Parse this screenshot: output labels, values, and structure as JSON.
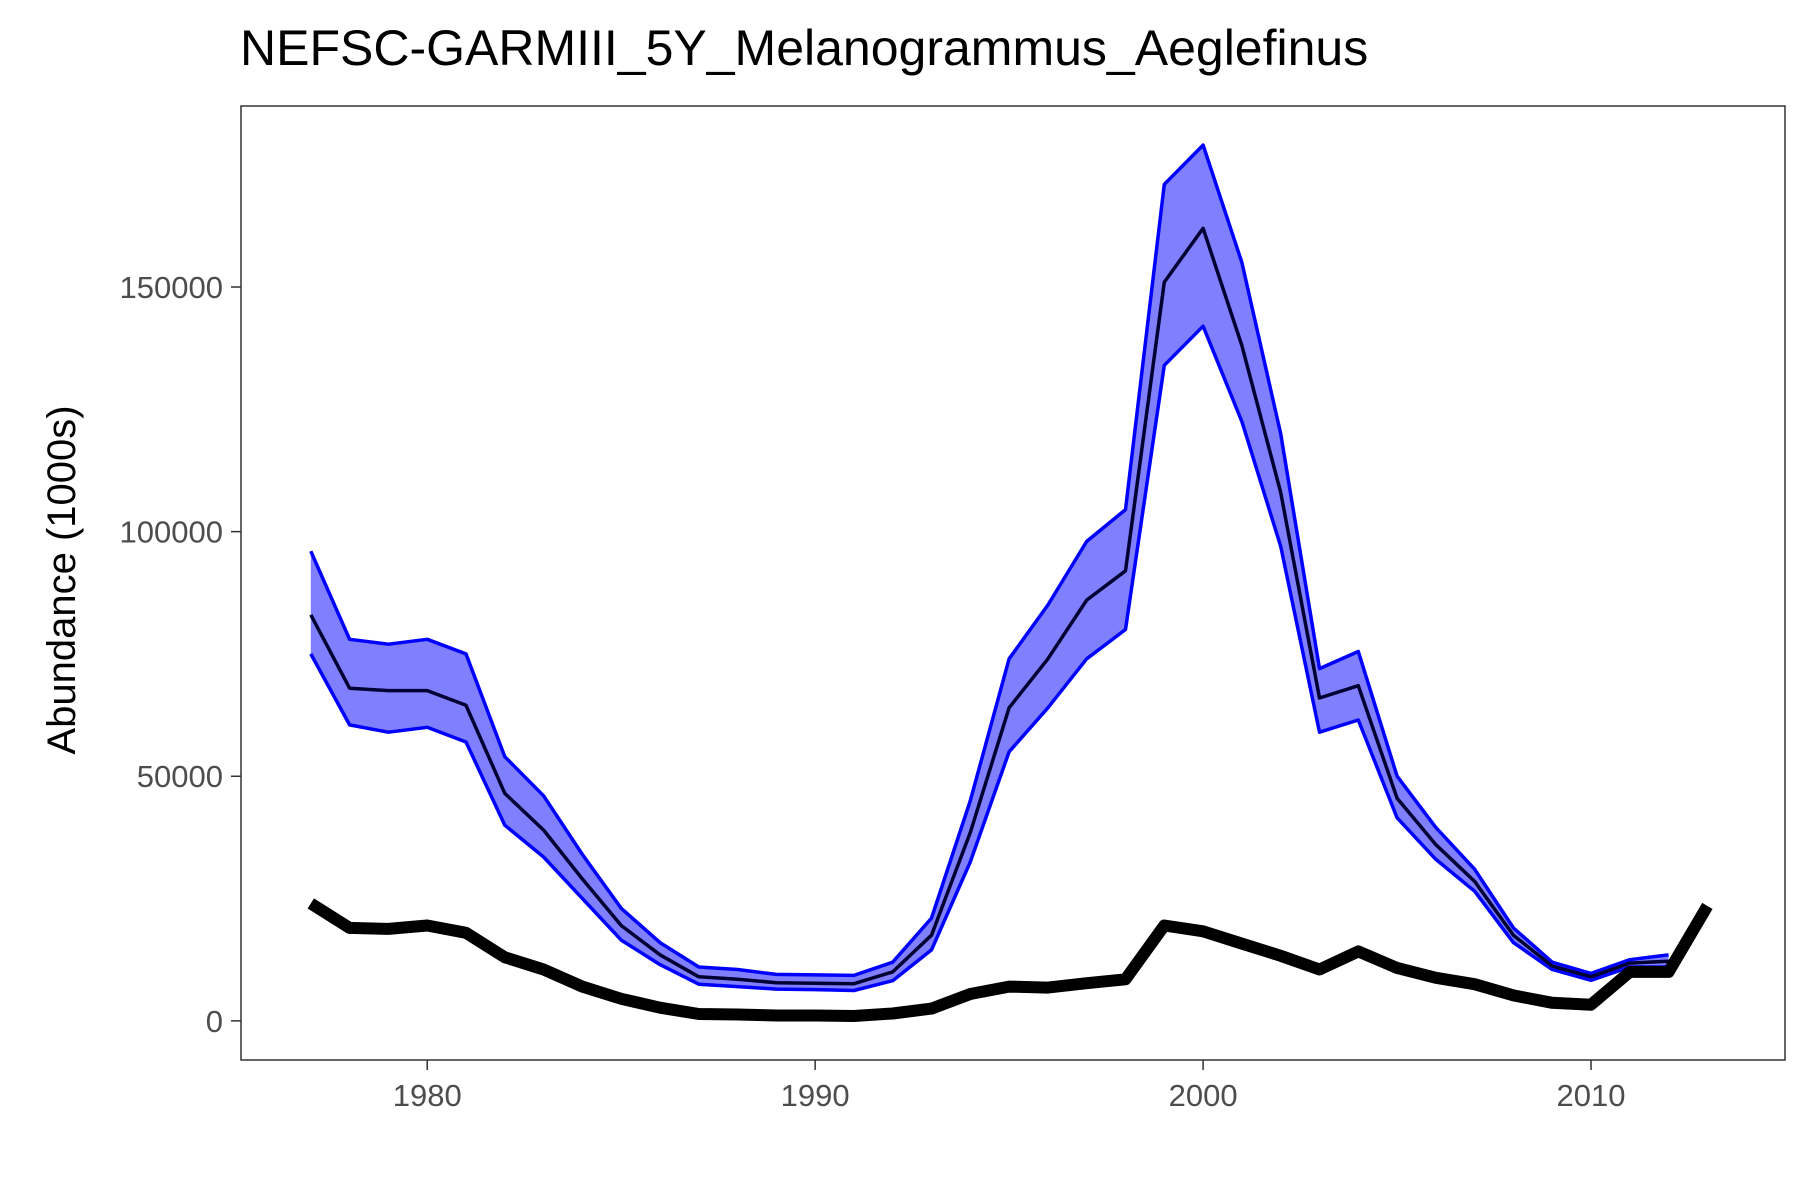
{
  "chart_data": {
    "type": "line",
    "title": "NEFSC-GARMIII_5Y_Melanogrammus_Aeglefinus",
    "xlabel": "",
    "ylabel": "Abundance (1000s)",
    "xlim": [
      1975.2,
      2015
    ],
    "ylim": [
      -8000,
      187000
    ],
    "x_ticks": [
      1980,
      1990,
      2000,
      2010
    ],
    "y_ticks": [
      0,
      50000,
      100000,
      150000
    ],
    "x_tick_labels": [
      "1980",
      "1990",
      "2000",
      "2010"
    ],
    "y_tick_labels": [
      "0",
      "50000",
      "100000",
      "150000"
    ],
    "grid": false,
    "legend": "none",
    "x": [
      1977,
      1978,
      1979,
      1980,
      1981,
      1982,
      1983,
      1984,
      1985,
      1986,
      1987,
      1988,
      1989,
      1990,
      1991,
      1992,
      1993,
      1994,
      1995,
      1996,
      1997,
      1998,
      1999,
      2000,
      2001,
      2002,
      2003,
      2004,
      2005,
      2006,
      2007,
      2008,
      2009,
      2010,
      2011,
      2012
    ],
    "series": [
      {
        "role": "band",
        "upper": [
          96000,
          78000,
          77000,
          78000,
          75000,
          54000,
          46000,
          34000,
          23000,
          16000,
          11000,
          10500,
          9500,
          9400,
          9300,
          12000,
          21000,
          45000,
          74000,
          85000,
          98000,
          104500,
          171000,
          179000,
          155000,
          120000,
          72000,
          75500,
          50000,
          39500,
          31000,
          19000,
          12000,
          9700,
          12500,
          13500
        ],
        "lower": [
          75000,
          60500,
          59000,
          60000,
          57000,
          40000,
          33500,
          25000,
          16500,
          11500,
          7500,
          7000,
          6500,
          6400,
          6200,
          8200,
          14500,
          32500,
          55000,
          64000,
          74000,
          80000,
          134000,
          142000,
          122500,
          97000,
          59000,
          61500,
          41500,
          33000,
          26500,
          16000,
          10500,
          8300,
          11000,
          11000
        ],
        "fill": "#8080ff",
        "stroke": "#0000ff"
      },
      {
        "role": "estimate",
        "values": [
          83000,
          68000,
          67500,
          67500,
          64500,
          46500,
          39000,
          29000,
          19500,
          13500,
          9000,
          8500,
          7800,
          7700,
          7600,
          10000,
          17500,
          38500,
          64000,
          74000,
          86000,
          92000,
          151000,
          162000,
          138000,
          108000,
          66000,
          68500,
          45500,
          36000,
          28500,
          17500,
          11200,
          9000,
          11800,
          12200
        ],
        "color": "#000033"
      }
    ],
    "observed": {
      "x": [
        1977,
        1978,
        1979,
        1980,
        1981,
        1982,
        1983,
        1984,
        1985,
        1986,
        1987,
        1988,
        1989,
        1990,
        1991,
        1992,
        1993,
        1994,
        1995,
        1996,
        1997,
        1998,
        1999,
        2000,
        2001,
        2002,
        2003,
        2004,
        2005,
        2006,
        2007,
        2008,
        2009,
        2010,
        2011,
        2012,
        2013
      ],
      "values": [
        24000,
        19000,
        18800,
        19500,
        18000,
        13000,
        10500,
        7000,
        4500,
        2700,
        1400,
        1300,
        1100,
        1100,
        1000,
        1500,
        2500,
        5500,
        7000,
        6800,
        7700,
        8500,
        19500,
        18300,
        15800,
        13300,
        10500,
        14200,
        10800,
        8800,
        7500,
        5200,
        3700,
        3300,
        10000,
        10000,
        23500
      ],
      "color": "#000000"
    }
  }
}
